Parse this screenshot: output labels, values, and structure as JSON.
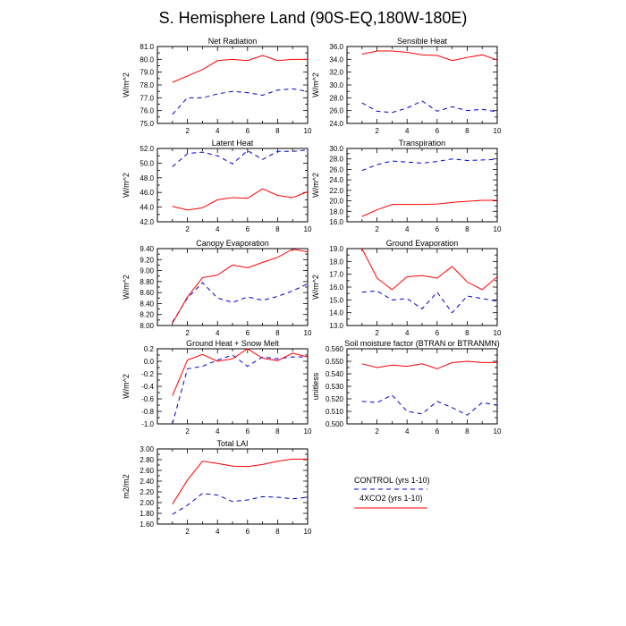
{
  "figure": {
    "title": "S. Hemisphere Land (90S-EQ,180W-180E)"
  },
  "legend": {
    "entries": [
      {
        "label": "CONTROL (yrs 1-10)",
        "color": "#0000cc",
        "dash": "dashed"
      },
      {
        "label": "4XCO2 (yrs 1-10)",
        "color": "#ff0000",
        "dash": "solid"
      }
    ]
  },
  "chart_data": [
    {
      "type": "line",
      "title": "Net Radiation",
      "xlabel": "",
      "ylabel": "W/m^2",
      "xlim": [
        0,
        10
      ],
      "ylim": [
        75.0,
        81.0
      ],
      "xticks": [
        2,
        4,
        6,
        8,
        10
      ],
      "xtick_labels": [
        "2",
        "4",
        "6",
        "8",
        "10"
      ],
      "yticks": [
        75.0,
        76.0,
        77.0,
        78.0,
        79.0,
        80.0,
        81.0
      ],
      "ytick_labels": [
        "75.0",
        "76.0",
        "77.0",
        "78.0",
        "79.0",
        "80.0",
        "81.0"
      ],
      "x": [
        1,
        2,
        3,
        4,
        5,
        6,
        7,
        8,
        9,
        10
      ],
      "series": [
        {
          "name": "CONTROL (yrs 1-10)",
          "values": [
            75.7,
            77.0,
            77.0,
            77.3,
            77.5,
            77.4,
            77.2,
            77.6,
            77.7,
            77.5
          ]
        },
        {
          "name": "4XCO2 (yrs 1-10)",
          "values": [
            78.2,
            78.7,
            79.2,
            79.9,
            80.0,
            79.9,
            80.3,
            79.9,
            80.0,
            80.0
          ]
        }
      ]
    },
    {
      "type": "line",
      "title": "Sensible Heat",
      "xlabel": "",
      "ylabel": "W/m^2",
      "xlim": [
        0,
        10
      ],
      "ylim": [
        24.0,
        36.0
      ],
      "xticks": [
        2,
        4,
        6,
        8,
        10
      ],
      "xtick_labels": [
        "2",
        "4",
        "6",
        "8",
        "10"
      ],
      "yticks": [
        24.0,
        26.0,
        28.0,
        30.0,
        32.0,
        34.0,
        36.0
      ],
      "ytick_labels": [
        "24.0",
        "26.0",
        "28.0",
        "30.0",
        "32.0",
        "34.0",
        "36.0"
      ],
      "x": [
        1,
        2,
        3,
        4,
        5,
        6,
        7,
        8,
        9,
        10
      ],
      "series": [
        {
          "name": "CONTROL (yrs 1-10)",
          "values": [
            27.2,
            25.9,
            25.7,
            26.4,
            27.5,
            25.9,
            26.6,
            26.0,
            26.2,
            25.8
          ]
        },
        {
          "name": "4XCO2 (yrs 1-10)",
          "values": [
            34.8,
            35.3,
            35.3,
            35.1,
            34.7,
            34.6,
            33.8,
            34.3,
            34.7,
            33.9
          ]
        }
      ]
    },
    {
      "type": "line",
      "title": "Latent Heat",
      "xlabel": "",
      "ylabel": "W/m^2",
      "xlim": [
        0,
        10
      ],
      "ylim": [
        42.0,
        52.0
      ],
      "xticks": [
        2,
        4,
        6,
        8,
        10
      ],
      "xtick_labels": [
        "2",
        "4",
        "6",
        "8",
        "10"
      ],
      "yticks": [
        42.0,
        44.0,
        46.0,
        48.0,
        50.0,
        52.0
      ],
      "ytick_labels": [
        "42.0",
        "44.0",
        "46.0",
        "48.0",
        "50.0",
        "52.0"
      ],
      "x": [
        1,
        2,
        3,
        4,
        5,
        6,
        7,
        8,
        9,
        10
      ],
      "series": [
        {
          "name": "CONTROL (yrs 1-10)",
          "values": [
            49.5,
            51.3,
            51.5,
            51.0,
            49.9,
            51.7,
            50.5,
            51.6,
            51.6,
            51.8
          ]
        },
        {
          "name": "4XCO2 (yrs 1-10)",
          "values": [
            44.1,
            43.6,
            43.9,
            45.0,
            45.3,
            45.2,
            46.5,
            45.6,
            45.3,
            46.1
          ]
        }
      ]
    },
    {
      "type": "line",
      "title": "Transpiration",
      "xlabel": "",
      "ylabel": "W/m^2",
      "xlim": [
        0,
        10
      ],
      "ylim": [
        16.0,
        30.0
      ],
      "xticks": [
        2,
        4,
        6,
        8,
        10
      ],
      "xtick_labels": [
        "2",
        "4",
        "6",
        "8",
        "10"
      ],
      "yticks": [
        16.0,
        18.0,
        20.0,
        22.0,
        24.0,
        26.0,
        28.0,
        30.0
      ],
      "ytick_labels": [
        "16.0",
        "18.0",
        "20.0",
        "22.0",
        "24.0",
        "26.0",
        "28.0",
        "30.0"
      ],
      "x": [
        1,
        2,
        3,
        4,
        5,
        6,
        7,
        8,
        9,
        10
      ],
      "series": [
        {
          "name": "CONTROL (yrs 1-10)",
          "values": [
            25.8,
            26.9,
            27.6,
            27.4,
            27.2,
            27.5,
            28.0,
            27.7,
            27.8,
            27.9
          ]
        },
        {
          "name": "4XCO2 (yrs 1-10)",
          "values": [
            17.0,
            18.3,
            19.3,
            19.3,
            19.3,
            19.4,
            19.7,
            19.9,
            20.1,
            20.1
          ]
        }
      ]
    },
    {
      "type": "line",
      "title": "Canopy Evaporation",
      "xlabel": "",
      "ylabel": "W/m^2",
      "xlim": [
        0,
        10
      ],
      "ylim": [
        8.0,
        9.4
      ],
      "xticks": [
        2,
        4,
        6,
        8,
        10
      ],
      "xtick_labels": [
        "2",
        "4",
        "6",
        "8",
        "10"
      ],
      "yticks": [
        8.0,
        8.2,
        8.4,
        8.6,
        8.8,
        9.0,
        9.2,
        9.4
      ],
      "ytick_labels": [
        "8.00",
        "8.20",
        "8.40",
        "8.60",
        "8.80",
        "9.00",
        "9.20",
        "9.40"
      ],
      "x": [
        1,
        2,
        3,
        4,
        5,
        6,
        7,
        8,
        9,
        10
      ],
      "series": [
        {
          "name": "CONTROL (yrs 1-10)",
          "values": [
            8.06,
            8.5,
            8.78,
            8.5,
            8.42,
            8.52,
            8.46,
            8.53,
            8.63,
            8.76
          ]
        },
        {
          "name": "4XCO2 (yrs 1-10)",
          "values": [
            8.04,
            8.52,
            8.87,
            8.92,
            9.1,
            9.05,
            9.15,
            9.24,
            9.39,
            9.34
          ]
        }
      ]
    },
    {
      "type": "line",
      "title": "Ground Evaporation",
      "xlabel": "",
      "ylabel": "W/m^2",
      "xlim": [
        0,
        10
      ],
      "ylim": [
        13.0,
        19.0
      ],
      "xticks": [
        2,
        4,
        6,
        8,
        10
      ],
      "xtick_labels": [
        "2",
        "4",
        "6",
        "8",
        "10"
      ],
      "yticks": [
        13.0,
        14.0,
        15.0,
        16.0,
        17.0,
        18.0,
        19.0
      ],
      "ytick_labels": [
        "13.0",
        "14.0",
        "15.0",
        "16.0",
        "17.0",
        "18.0",
        "19.0"
      ],
      "x": [
        1,
        2,
        3,
        4,
        5,
        6,
        7,
        8,
        9,
        10
      ],
      "series": [
        {
          "name": "CONTROL (yrs 1-10)",
          "values": [
            15.6,
            15.7,
            15.0,
            15.1,
            14.3,
            15.6,
            14.0,
            15.3,
            15.1,
            14.9
          ]
        },
        {
          "name": "4XCO2 (yrs 1-10)",
          "values": [
            19.0,
            16.7,
            15.8,
            16.8,
            16.9,
            16.7,
            17.6,
            16.4,
            15.8,
            16.8
          ]
        }
      ]
    },
    {
      "type": "line",
      "title": "Ground Heat + Snow Melt",
      "xlabel": "",
      "ylabel": "W/m^2",
      "xlim": [
        0,
        10
      ],
      "ylim": [
        -1.0,
        0.2
      ],
      "xticks": [
        2,
        4,
        6,
        8,
        10
      ],
      "xtick_labels": [
        "2",
        "4",
        "6",
        "8",
        "10"
      ],
      "yticks": [
        -1.0,
        -0.8,
        -0.6,
        -0.4,
        -0.2,
        0.0,
        0.2
      ],
      "ytick_labels": [
        "-1.0",
        "-0.8",
        "-0.6",
        "-0.4",
        "-0.2",
        "0.0",
        "0.2"
      ],
      "x": [
        1,
        2,
        3,
        4,
        5,
        6,
        7,
        8,
        9,
        10
      ],
      "series": [
        {
          "name": "CONTROL (yrs 1-10)",
          "values": [
            -1.0,
            -0.12,
            -0.08,
            0.02,
            0.1,
            -0.08,
            0.07,
            0.04,
            0.07,
            0.07
          ]
        },
        {
          "name": "4XCO2 (yrs 1-10)",
          "values": [
            -0.55,
            0.02,
            0.11,
            0.0,
            0.04,
            0.2,
            0.05,
            0.01,
            0.13,
            0.07
          ]
        }
      ]
    },
    {
      "type": "line",
      "title": "Soil moisture factor (BTRAN or BTRANMN)",
      "xlabel": "",
      "ylabel": "unitless",
      "xlim": [
        0,
        10
      ],
      "ylim": [
        0.5,
        0.56
      ],
      "xticks": [
        2,
        4,
        6,
        8,
        10
      ],
      "xtick_labels": [
        "2",
        "4",
        "6",
        "8",
        "10"
      ],
      "yticks": [
        0.5,
        0.51,
        0.52,
        0.53,
        0.54,
        0.55,
        0.56
      ],
      "ytick_labels": [
        "0.500",
        "0.510",
        "0.520",
        "0.530",
        "0.540",
        "0.550",
        "0.560"
      ],
      "x": [
        1,
        2,
        3,
        4,
        5,
        6,
        7,
        8,
        9,
        10
      ],
      "series": [
        {
          "name": "CONTROL (yrs 1-10)",
          "values": [
            0.518,
            0.517,
            0.523,
            0.51,
            0.508,
            0.518,
            0.513,
            0.507,
            0.517,
            0.515
          ]
        },
        {
          "name": "4XCO2 (yrs 1-10)",
          "values": [
            0.548,
            0.545,
            0.547,
            0.546,
            0.548,
            0.544,
            0.549,
            0.55,
            0.549,
            0.549
          ]
        }
      ]
    },
    {
      "type": "line",
      "title": "Total LAI",
      "xlabel": "",
      "ylabel": "m2/m2",
      "xlim": [
        0,
        10
      ],
      "ylim": [
        1.6,
        3.0
      ],
      "xticks": [
        2,
        4,
        6,
        8,
        10
      ],
      "xtick_labels": [
        "2",
        "4",
        "6",
        "8",
        "10"
      ],
      "yticks": [
        1.6,
        1.8,
        2.0,
        2.2,
        2.4,
        2.6,
        2.8,
        3.0
      ],
      "ytick_labels": [
        "1.60",
        "1.80",
        "2.00",
        "2.20",
        "2.40",
        "2.60",
        "2.80",
        "3.00"
      ],
      "x": [
        1,
        2,
        3,
        4,
        5,
        6,
        7,
        8,
        9,
        10
      ],
      "series": [
        {
          "name": "CONTROL (yrs 1-10)",
          "values": [
            1.78,
            1.95,
            2.17,
            2.14,
            2.02,
            2.05,
            2.11,
            2.1,
            2.07,
            2.1
          ]
        },
        {
          "name": "4XCO2 (yrs 1-10)",
          "values": [
            1.97,
            2.42,
            2.77,
            2.73,
            2.68,
            2.67,
            2.71,
            2.77,
            2.81,
            2.81
          ]
        }
      ]
    }
  ]
}
